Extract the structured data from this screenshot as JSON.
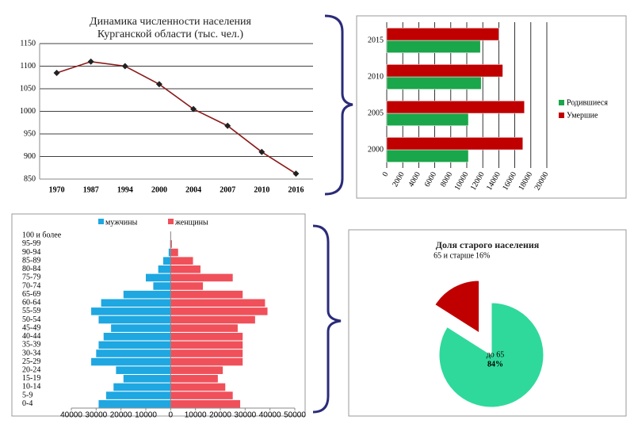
{
  "chart_data": [
    {
      "type": "line",
      "title": "Динамика численности населения Курганской области (тыс. чел.)",
      "categories": [
        "1970",
        "1987",
        "1994",
        "2000",
        "2004",
        "2007",
        "2010",
        "2016"
      ],
      "values": [
        1085,
        1110,
        1100,
        1060,
        1005,
        968,
        910,
        862
      ],
      "color": "#8b1a1a",
      "ylim": [
        850,
        1150
      ],
      "yticks": [
        850,
        900,
        950,
        1000,
        1050,
        1100,
        1150
      ],
      "grid": true
    },
    {
      "type": "bar",
      "horizontal": true,
      "categories": [
        "2000",
        "2005",
        "2010",
        "2015"
      ],
      "series": [
        {
          "name": "Родившиеся",
          "color": "#1aa64a",
          "values": [
            10200,
            10200,
            11800,
            11700
          ]
        },
        {
          "name": "Умершие",
          "color": "#c00000",
          "values": [
            17000,
            17200,
            14500,
            14000
          ]
        }
      ],
      "xlim": [
        0,
        20000
      ],
      "xticks": [
        0,
        2000,
        4000,
        6000,
        8000,
        10000,
        12000,
        14000,
        16000,
        18000,
        20000
      ],
      "grid": true,
      "legend": "right"
    },
    {
      "type": "pyramid",
      "categories": [
        "0-4",
        "5-9",
        "10-14",
        "15-19",
        "20-24",
        "25-29",
        "30-34",
        "35-39",
        "40-44",
        "45-49",
        "50-54",
        "55-59",
        "60-64",
        "65-69",
        "70-74",
        "75-79",
        "80-84",
        "85-89",
        "90-94",
        "95-99",
        "100 и более"
      ],
      "series": [
        {
          "name": "мужчины",
          "color": "#1ea7e1",
          "values": [
            -29000,
            -26000,
            -23000,
            -19000,
            -22000,
            -32000,
            -30000,
            -29000,
            -27000,
            -24000,
            -29000,
            -32000,
            -28000,
            -19000,
            -7000,
            -10000,
            -5000,
            -3000,
            -800,
            -200,
            0
          ]
        },
        {
          "name": "женщины",
          "color": "#f0505a",
          "values": [
            28000,
            25000,
            22000,
            19000,
            21000,
            29000,
            29000,
            29000,
            29000,
            27000,
            34000,
            39000,
            38000,
            29000,
            13000,
            25000,
            12000,
            9000,
            3000,
            500,
            100
          ]
        }
      ],
      "xlim": [
        -40000,
        50000
      ],
      "xticks": [
        {
          "value": -40000,
          "label": "40000"
        },
        {
          "value": -30000,
          "label": "30000"
        },
        {
          "value": -20000,
          "label": "20000"
        },
        {
          "value": -10000,
          "label": "10000"
        },
        0,
        10000,
        20000,
        30000,
        40000,
        50000
      ],
      "legend": "top"
    },
    {
      "type": "pie",
      "title": "Доля старого населения",
      "categories": [
        "65 и старше",
        "до 65"
      ],
      "values": [
        16,
        84
      ],
      "value_labels": [
        "16%",
        "84%"
      ],
      "colors": [
        "#c00000",
        "#2fd99b"
      ]
    }
  ]
}
